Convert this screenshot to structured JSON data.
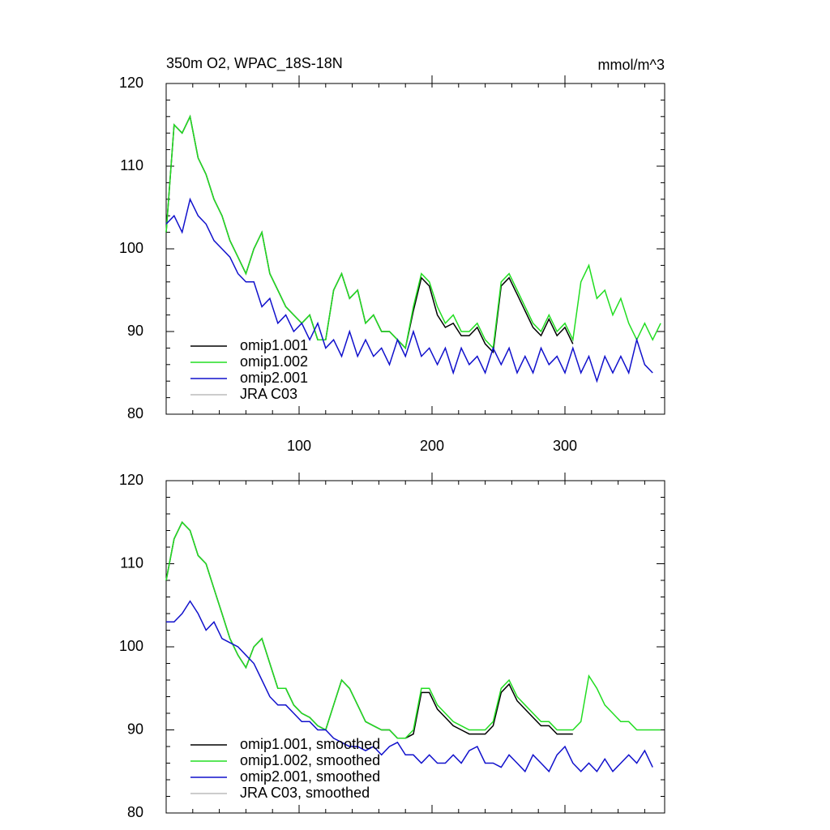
{
  "chart_data": [
    {
      "type": "line",
      "title": "350m O2, WPAC_18S-18N",
      "units": "mmol/m^3",
      "x": [
        0,
        6,
        12,
        18,
        24,
        30,
        36,
        42,
        48,
        54,
        60,
        66,
        72,
        78,
        84,
        90,
        96,
        102,
        108,
        114,
        120,
        126,
        132,
        138,
        144,
        150,
        156,
        162,
        168,
        174,
        180,
        186,
        192,
        198,
        204,
        210,
        216,
        222,
        228,
        234,
        240,
        246,
        252,
        258,
        264,
        270,
        276,
        282,
        288,
        294,
        300,
        306,
        312,
        318,
        324,
        330,
        336,
        342,
        348,
        354,
        360,
        366,
        372
      ],
      "series": [
        {
          "name": "omip1.001",
          "color": "#000000",
          "values": [
            102,
            115,
            114,
            116,
            111,
            109,
            106,
            104,
            101,
            99,
            97,
            100,
            102,
            97,
            95,
            93,
            92,
            91,
            92,
            89,
            89,
            95,
            97,
            94,
            95,
            91,
            92,
            90,
            90,
            89,
            88,
            92.5,
            96.5,
            95.5,
            92,
            90.5,
            91,
            89.5,
            89.5,
            90.5,
            88.5,
            87.5,
            95.5,
            96.5,
            94.5,
            92.5,
            90.5,
            89.5,
            91.5,
            89.5,
            90.5,
            88.5,
            null,
            null,
            null,
            null,
            null,
            null,
            null,
            null,
            null,
            null,
            null
          ]
        },
        {
          "name": "omip1.002",
          "color": "#22dd22",
          "values": [
            102,
            115,
            114,
            116,
            111,
            109,
            106,
            104,
            101,
            99,
            97,
            100,
            102,
            97,
            95,
            93,
            92,
            91,
            92,
            89,
            89,
            95,
            97,
            94,
            95,
            91,
            92,
            90,
            90,
            89,
            88,
            93,
            97,
            96,
            93,
            91,
            92,
            90,
            90,
            91,
            89,
            88,
            96,
            97,
            95,
            93,
            91,
            90,
            92,
            90,
            91,
            89,
            96,
            98,
            94,
            95,
            92,
            94,
            91,
            89,
            91,
            89,
            91
          ]
        },
        {
          "name": "omip2.001",
          "color": "#1111cc",
          "values": [
            103,
            104,
            102,
            106,
            104,
            103,
            101,
            100,
            99,
            97,
            96,
            96,
            93,
            94,
            91,
            92,
            90,
            91,
            89,
            91,
            88,
            89,
            87,
            90,
            87,
            89,
            87,
            88,
            86,
            89,
            87,
            90,
            87,
            88,
            86,
            88,
            85,
            88,
            86,
            87,
            85,
            88,
            86,
            88,
            85,
            87,
            85,
            88,
            86,
            87,
            85,
            88,
            85,
            87,
            84,
            87,
            85,
            87,
            85,
            89,
            86,
            85,
            null
          ]
        },
        {
          "name": "JRA C03",
          "color": "#bbbbbb",
          "values": [
            null,
            null,
            null,
            null,
            null,
            null,
            null,
            null,
            null,
            null,
            null,
            null,
            null,
            null,
            null,
            null,
            null,
            null,
            null,
            null,
            null,
            null,
            null,
            null,
            null,
            null,
            null,
            null,
            null,
            null,
            null,
            null,
            null,
            null,
            null,
            null,
            null,
            null,
            null,
            null,
            null,
            null,
            null,
            null,
            null,
            null,
            null,
            null,
            null,
            null,
            null,
            null,
            null,
            null,
            null,
            null,
            null,
            null,
            null,
            null,
            null,
            null,
            null
          ]
        }
      ],
      "xlim": [
        0,
        375
      ],
      "xticks": [
        100,
        200,
        300
      ],
      "xtick_labels": true,
      "ylim": [
        80,
        120
      ],
      "yticks": [
        80,
        90,
        100,
        110,
        120
      ],
      "legend": "lower left"
    },
    {
      "type": "line",
      "x": [
        0,
        6,
        12,
        18,
        24,
        30,
        36,
        42,
        48,
        54,
        60,
        66,
        72,
        78,
        84,
        90,
        96,
        102,
        108,
        114,
        120,
        126,
        132,
        138,
        144,
        150,
        156,
        162,
        168,
        174,
        180,
        186,
        192,
        198,
        204,
        210,
        216,
        222,
        228,
        234,
        240,
        246,
        252,
        258,
        264,
        270,
        276,
        282,
        288,
        294,
        300,
        306,
        312,
        318,
        324,
        330,
        336,
        342,
        348,
        354,
        360,
        366,
        372
      ],
      "series": [
        {
          "name": "omip1.001, smoothed",
          "color": "#000000",
          "values": [
            108,
            113,
            115,
            114,
            111,
            110,
            107,
            104,
            101,
            99,
            97.5,
            100,
            101,
            98,
            95,
            95,
            93,
            92,
            91.5,
            90.5,
            90,
            93,
            96,
            95,
            93,
            91,
            90.5,
            90,
            90,
            89,
            89,
            89.5,
            94.5,
            94.5,
            92.5,
            91.5,
            90.5,
            90,
            89.5,
            89.5,
            89.5,
            90.5,
            94.5,
            95.5,
            93.5,
            92.5,
            91.5,
            90.5,
            90.5,
            89.5,
            89.5,
            89.5,
            null,
            null,
            null,
            null,
            null,
            null,
            null,
            null,
            null,
            null,
            null
          ]
        },
        {
          "name": "omip1.002, smoothed",
          "color": "#22dd22",
          "values": [
            108,
            113,
            115,
            114,
            111,
            110,
            107,
            104,
            101,
            99,
            97.5,
            100,
            101,
            98,
            95,
            95,
            93,
            92,
            91.5,
            90.5,
            90,
            93,
            96,
            95,
            93,
            91,
            90.5,
            90,
            90,
            89,
            89,
            90,
            95,
            95,
            93,
            92,
            91,
            90.5,
            90,
            90,
            90,
            91,
            95,
            96,
            94,
            93,
            92,
            91,
            91,
            90,
            90,
            90,
            91,
            96.5,
            95,
            93,
            92,
            91,
            91,
            90,
            90,
            90,
            90
          ]
        },
        {
          "name": "omip2.001, smoothed",
          "color": "#1111cc",
          "values": [
            103,
            103,
            104,
            105.5,
            104,
            102,
            103,
            101,
            100.5,
            100,
            99,
            98,
            96,
            94,
            93,
            93,
            92,
            91,
            91,
            90,
            90,
            89,
            88.5,
            88,
            88,
            87.5,
            88,
            87,
            88,
            88.5,
            87,
            87,
            86,
            87,
            86,
            86,
            87,
            86,
            87.5,
            88,
            86,
            86,
            85.5,
            87,
            86,
            85,
            87,
            86,
            85,
            87,
            88,
            86,
            85,
            86,
            85,
            86.5,
            85,
            86,
            87,
            86,
            87.5,
            85.5,
            null
          ]
        },
        {
          "name": "JRA C03, smoothed",
          "color": "#bbbbbb",
          "values": [
            null,
            null,
            null,
            null,
            null,
            null,
            null,
            null,
            null,
            null,
            null,
            null,
            null,
            null,
            null,
            null,
            null,
            null,
            null,
            null,
            null,
            null,
            null,
            null,
            null,
            null,
            null,
            null,
            null,
            null,
            null,
            null,
            null,
            null,
            null,
            null,
            null,
            null,
            null,
            null,
            null,
            null,
            null,
            null,
            null,
            null,
            null,
            null,
            null,
            null,
            null,
            null,
            null,
            null,
            null,
            null,
            null,
            null,
            null,
            null,
            null,
            null,
            null
          ]
        }
      ],
      "xlim": [
        0,
        375
      ],
      "xticks": [
        100,
        200,
        300
      ],
      "xtick_labels": false,
      "ylim": [
        80,
        120
      ],
      "yticks": [
        80,
        90,
        100,
        110,
        120
      ],
      "legend": "lower left"
    }
  ]
}
